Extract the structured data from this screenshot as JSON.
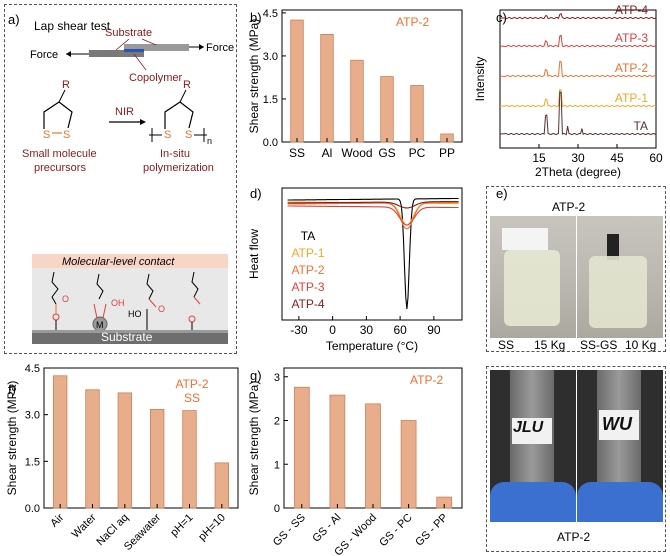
{
  "panels": {
    "a": {
      "label": "a)",
      "title": "Lap shear test",
      "substrate_label": "Substrate",
      "force_left": "Force",
      "force_right": "Force",
      "copolymer_label": "Copolymer",
      "nir_label": "NIR",
      "r_label": "R",
      "s_label": "S",
      "n_label": "n",
      "precursor_lines": [
        "Small molecule",
        "precursors"
      ],
      "polymer_lines": [
        "In-situ",
        "polymerization"
      ],
      "contact_label": "Molecular-level contact",
      "metal_label": "M",
      "o_label": "O",
      "oh_label": "OH",
      "ho_label": "HO",
      "substrate_bottom_label": "Substrate"
    },
    "b": {
      "label": "b)",
      "legend": "ATP-2",
      "ylabel": "Shear strength (MPa)",
      "chart_data": {
        "type": "bar",
        "categories": [
          "SS",
          "Al",
          "Wood",
          "GS",
          "PC",
          "PP"
        ],
        "values": [
          4.25,
          3.75,
          2.85,
          2.28,
          1.97,
          0.28
        ],
        "ylabel": "Shear strength (MPa)",
        "ylim": [
          0,
          4.6
        ],
        "yticks": [
          "0.0",
          "1.5",
          "3.0",
          "4.5"
        ]
      }
    },
    "c": {
      "label": "c)",
      "ylabel": "Intensity",
      "xlabel": "2Theta (degree)",
      "chart_data": {
        "type": "line",
        "xlim": [
          0,
          60
        ],
        "xticks": [
          "15",
          "30",
          "45",
          "60"
        ],
        "series": [
          {
            "name": "ATP-4",
            "color": "#8b1a1a"
          },
          {
            "name": "ATP-3",
            "color": "#e0403a"
          },
          {
            "name": "ATP-2",
            "color": "#f07030"
          },
          {
            "name": "ATP-1",
            "color": "#f5a623"
          },
          {
            "name": "TA",
            "color": "#5a3030"
          }
        ]
      }
    },
    "d": {
      "label": "d)",
      "ylabel": "Heat flow",
      "xlabel": "Temperature (°C)",
      "chart_data": {
        "type": "line",
        "xlim": [
          -45,
          115
        ],
        "xticks": [
          "-30",
          "0",
          "30",
          "60",
          "90"
        ],
        "series": [
          {
            "name": "TA",
            "color": "#000000"
          },
          {
            "name": "ATP-1",
            "color": "#f5a623"
          },
          {
            "name": "ATP-2",
            "color": "#f07030"
          },
          {
            "name": "ATP-3",
            "color": "#e0403a"
          },
          {
            "name": "ATP-4",
            "color": "#8b1a1a"
          }
        ]
      }
    },
    "e": {
      "label": "e)",
      "title": "ATP-2",
      "left_caption": "SS",
      "left_weight": "15 Kg",
      "right_caption": "SS-GS",
      "right_weight": "10 Kg"
    },
    "f": {
      "label": "f)",
      "legend_line1": "ATP-2",
      "legend_line2": "SS",
      "ylabel": "Shear strength (MPa)",
      "chart_data": {
        "type": "bar",
        "categories": [
          "Air",
          "Water",
          "NaCl aq",
          "Seawater",
          "pH=1",
          "pH=10"
        ],
        "values": [
          4.25,
          3.8,
          3.7,
          3.17,
          3.13,
          1.45
        ],
        "ylabel": "Shear strength (MPa)",
        "ylim": [
          0,
          4.5
        ],
        "yticks": [
          "0.0",
          "1.5",
          "3.0",
          "4.5"
        ]
      }
    },
    "g": {
      "label": "g)",
      "legend": "ATP-2",
      "ylabel": "Shear strength (MPa)",
      "chart_data": {
        "type": "bar",
        "categories": [
          "GS - SS",
          "GS - Al",
          "GS - Wood",
          "GS - PC",
          "GS - PP"
        ],
        "values": [
          2.76,
          2.58,
          2.38,
          2.0,
          0.25
        ],
        "ylabel": "Shear strength (MPa)",
        "ylim": [
          0,
          3.2
        ],
        "yticks": [
          "0",
          "1",
          "2",
          "3"
        ]
      }
    },
    "h": {
      "label": "h)",
      "caption": "ATP-2",
      "left_text": "JLU",
      "right_text": "WU"
    }
  },
  "colors": {
    "bar_fill": "#e8ae8c",
    "bar_stroke": "#c9805a",
    "accent_orange": "#f07030",
    "dark_red": "#8b1a1a"
  }
}
